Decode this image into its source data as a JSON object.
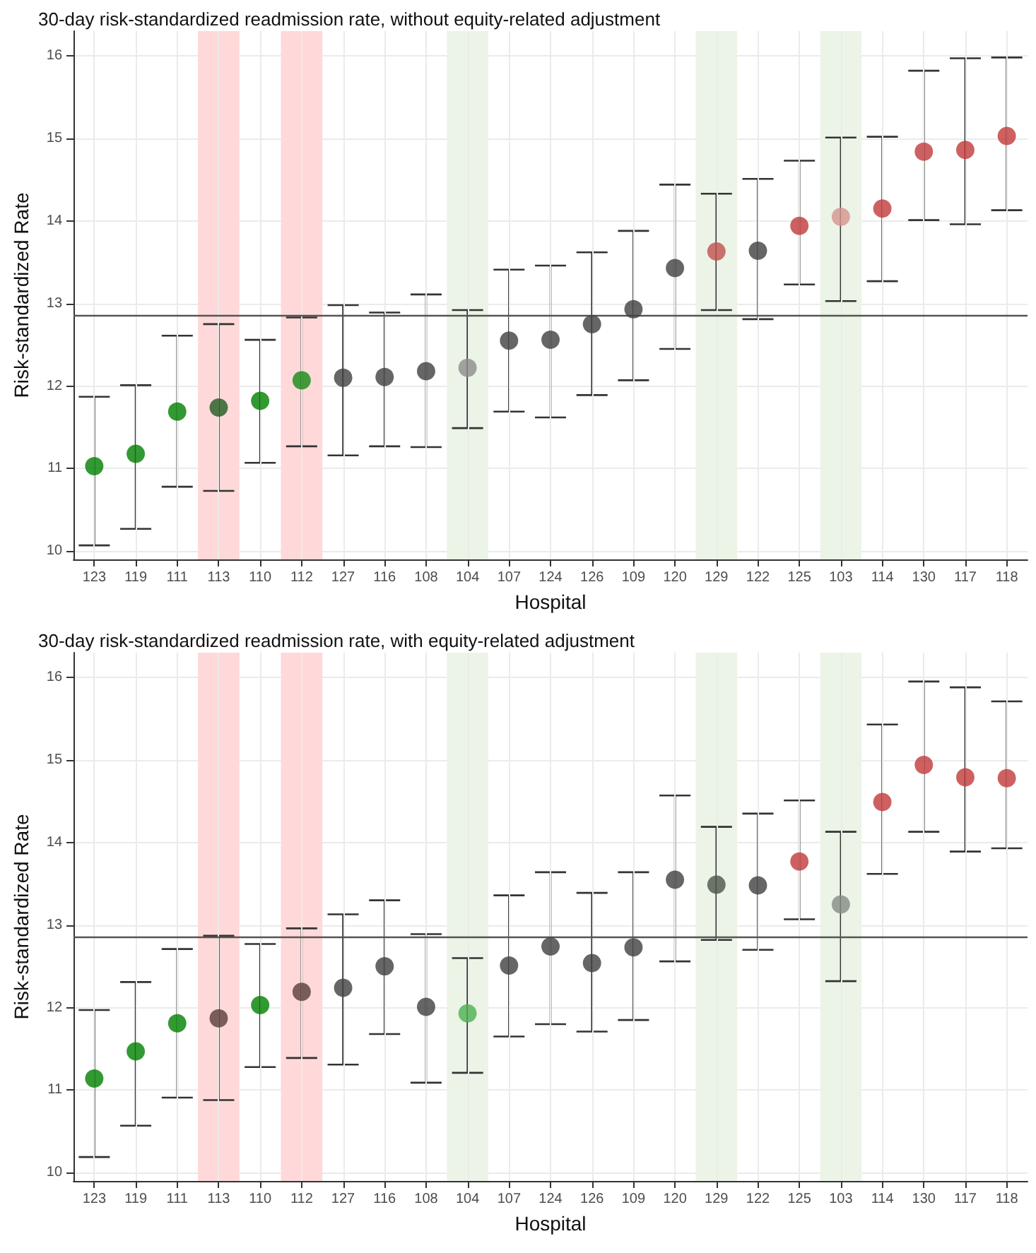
{
  "chart_data": [
    {
      "type": "scatter",
      "title": "30-day risk-standardized readmission rate, without equity-related adjustment",
      "xlabel": "Hospital",
      "ylabel": "Risk-standardized Rate",
      "marker": "circle",
      "grid": true,
      "categories": [
        "123",
        "119",
        "111",
        "113",
        "110",
        "112",
        "127",
        "116",
        "108",
        "104",
        "107",
        "124",
        "126",
        "109",
        "120",
        "129",
        "122",
        "125",
        "103",
        "114",
        "130",
        "117",
        "118"
      ],
      "values": [
        11.03,
        11.18,
        11.69,
        11.74,
        11.82,
        12.07,
        12.1,
        12.11,
        12.18,
        12.22,
        12.55,
        12.56,
        12.75,
        12.93,
        13.43,
        13.63,
        13.64,
        13.94,
        14.05,
        14.15,
        14.84,
        14.86,
        15.03
      ],
      "errors": [
        [
          10.07,
          11.87
        ],
        [
          10.27,
          12.01
        ],
        [
          10.78,
          12.61
        ],
        [
          10.73,
          12.75
        ],
        [
          11.07,
          12.56
        ],
        [
          11.27,
          12.83
        ],
        [
          11.16,
          12.98
        ],
        [
          11.27,
          12.89
        ],
        [
          11.26,
          13.11
        ],
        [
          11.49,
          12.92
        ],
        [
          11.69,
          13.41
        ],
        [
          11.62,
          13.46
        ],
        [
          11.89,
          13.62
        ],
        [
          12.07,
          13.88
        ],
        [
          12.45,
          14.44
        ],
        [
          12.92,
          14.33
        ],
        [
          12.81,
          14.51
        ],
        [
          13.23,
          14.73
        ],
        [
          13.03,
          15.01
        ],
        [
          13.27,
          15.02
        ],
        [
          14.01,
          15.82
        ],
        [
          13.96,
          15.97
        ],
        [
          14.13,
          15.98
        ]
      ],
      "colors": [
        "#008000",
        "#008000",
        "#008000",
        "#1f5a1f",
        "#008000",
        "#138a13",
        "#404040",
        "#404040",
        "#404040",
        "#8c8c8c",
        "#404040",
        "#404040",
        "#404040",
        "#404040",
        "#404040",
        "#c0504d",
        "#404040",
        "#c0393b",
        "#d4928f",
        "#c0393b",
        "#c0393b",
        "#c0393b",
        "#c0393b"
      ],
      "ylim": [
        9.9,
        16.3
      ],
      "yticks": [
        10,
        11,
        12,
        13,
        14,
        15,
        16
      ],
      "ref_lines": [
        {
          "axis": "y",
          "value": 12.85
        }
      ],
      "bands": [
        {
          "axis": "x",
          "from": "113",
          "to": "113",
          "color": "#ffd9d9"
        },
        {
          "axis": "x",
          "from": "112",
          "to": "112",
          "color": "#ffd9d9"
        },
        {
          "axis": "x",
          "from": "104",
          "to": "104",
          "color": "#ebf4e6"
        },
        {
          "axis": "x",
          "from": "129",
          "to": "129",
          "color": "#ebf4e6"
        },
        {
          "axis": "x",
          "from": "103",
          "to": "103",
          "color": "#ebf4e6"
        }
      ]
    },
    {
      "type": "scatter",
      "title": "30-day risk-standardized readmission rate, with equity-related adjustment",
      "xlabel": "Hospital",
      "ylabel": "Risk-standardized Rate",
      "marker": "circle",
      "grid": true,
      "categories": [
        "123",
        "119",
        "111",
        "113",
        "110",
        "112",
        "127",
        "116",
        "108",
        "104",
        "107",
        "124",
        "126",
        "109",
        "120",
        "129",
        "122",
        "125",
        "103",
        "114",
        "130",
        "117",
        "118"
      ],
      "values": [
        11.14,
        11.47,
        11.81,
        11.87,
        12.03,
        12.19,
        12.24,
        12.5,
        12.01,
        11.93,
        12.51,
        12.74,
        12.54,
        12.73,
        13.55,
        13.49,
        13.48,
        13.77,
        13.25,
        14.49,
        14.94,
        14.79,
        14.78
      ],
      "errors": [
        [
          10.19,
          11.97
        ],
        [
          10.57,
          12.31
        ],
        [
          10.91,
          12.71
        ],
        [
          10.88,
          12.87
        ],
        [
          11.28,
          12.77
        ],
        [
          11.39,
          12.96
        ],
        [
          11.31,
          13.13
        ],
        [
          11.68,
          13.3
        ],
        [
          11.09,
          12.89
        ],
        [
          11.21,
          12.6
        ],
        [
          11.65,
          13.36
        ],
        [
          11.8,
          13.64
        ],
        [
          11.71,
          13.39
        ],
        [
          11.85,
          13.64
        ],
        [
          12.56,
          14.57
        ],
        [
          12.82,
          14.19
        ],
        [
          12.7,
          14.35
        ],
        [
          13.07,
          14.51
        ],
        [
          12.32,
          14.13
        ],
        [
          13.62,
          15.43
        ],
        [
          14.13,
          15.95
        ],
        [
          13.89,
          15.88
        ],
        [
          13.93,
          15.71
        ]
      ],
      "colors": [
        "#008000",
        "#008000",
        "#008000",
        "#5a3c3c",
        "#008000",
        "#5a3c3c",
        "#404040",
        "#404040",
        "#404040",
        "#4caf50",
        "#404040",
        "#404040",
        "#404040",
        "#404040",
        "#404040",
        "#4a544a",
        "#404040",
        "#c0393b",
        "#838c83",
        "#c0393b",
        "#c0393b",
        "#c0393b",
        "#c0393b"
      ],
      "ylim": [
        9.9,
        16.3
      ],
      "yticks": [
        10,
        11,
        12,
        13,
        14,
        15,
        16
      ],
      "ref_lines": [
        {
          "axis": "y",
          "value": 12.85
        }
      ],
      "bands": [
        {
          "axis": "x",
          "from": "113",
          "to": "113",
          "color": "#ffd9d9"
        },
        {
          "axis": "x",
          "from": "112",
          "to": "112",
          "color": "#ffd9d9"
        },
        {
          "axis": "x",
          "from": "104",
          "to": "104",
          "color": "#ebf4e6"
        },
        {
          "axis": "x",
          "from": "129",
          "to": "129",
          "color": "#ebf4e6"
        },
        {
          "axis": "x",
          "from": "103",
          "to": "103",
          "color": "#ebf4e6"
        }
      ]
    }
  ]
}
